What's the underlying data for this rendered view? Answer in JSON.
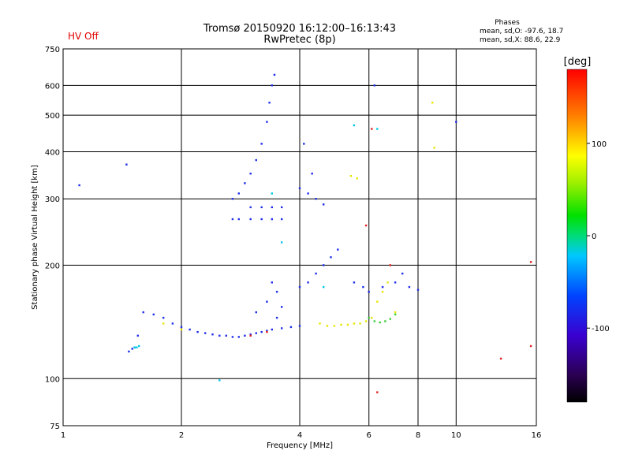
{
  "header": {
    "status": "HV Off",
    "title": "Tromsø 20150920 16:12:00–16:13:43",
    "subtitle": "RwPretec (8p)"
  },
  "phases": {
    "heading": "Phases",
    "o_line": "mean, sd,O: -97.6, 18.7",
    "x_line": "mean, sd,X:  88.6, 22.9"
  },
  "colorbar": {
    "label": "[deg]",
    "ticks": [
      "100",
      "0",
      "-100"
    ],
    "tick_values": [
      100,
      0,
      -100
    ],
    "range": [
      -180,
      180
    ]
  },
  "chart_data": {
    "type": "scatter",
    "xlabel": "Frequency [MHz]",
    "ylabel": "Stationary phase Virtual Height [km]",
    "x_scale": "log",
    "y_scale": "log",
    "xlim": [
      1,
      16
    ],
    "ylim": [
      75,
      750
    ],
    "x_ticks": [
      1,
      2,
      4,
      6,
      8,
      10,
      16
    ],
    "y_ticks": [
      75,
      100,
      200,
      300,
      400,
      500,
      600,
      750
    ],
    "grid": true,
    "color_by": "phase (deg)",
    "series": [
      {
        "color_group": "blue",
        "points": [
          [
            1.1,
            326
          ],
          [
            1.45,
            370
          ],
          [
            1.47,
            118
          ],
          [
            1.5,
            120
          ],
          [
            1.52,
            121
          ],
          [
            1.55,
            130
          ],
          [
            1.6,
            150
          ],
          [
            1.7,
            148
          ],
          [
            1.8,
            145
          ],
          [
            1.9,
            140
          ],
          [
            2.0,
            137
          ],
          [
            2.1,
            135
          ],
          [
            2.2,
            133
          ],
          [
            2.3,
            132
          ],
          [
            2.4,
            131
          ],
          [
            2.5,
            130
          ],
          [
            2.6,
            130
          ],
          [
            2.7,
            129
          ],
          [
            2.8,
            129
          ],
          [
            2.9,
            130
          ],
          [
            3.0,
            131
          ],
          [
            3.1,
            132
          ],
          [
            3.2,
            133
          ],
          [
            3.3,
            134
          ],
          [
            3.4,
            135
          ],
          [
            3.6,
            136
          ],
          [
            3.8,
            137
          ],
          [
            4.0,
            138
          ],
          [
            2.7,
            300
          ],
          [
            2.8,
            310
          ],
          [
            2.9,
            330
          ],
          [
            3.0,
            350
          ],
          [
            3.1,
            380
          ],
          [
            3.2,
            420
          ],
          [
            3.3,
            480
          ],
          [
            3.35,
            540
          ],
          [
            3.4,
            600
          ],
          [
            3.45,
            640
          ],
          [
            2.7,
            265
          ],
          [
            2.8,
            265
          ],
          [
            3.0,
            265
          ],
          [
            3.2,
            265
          ],
          [
            3.4,
            265
          ],
          [
            3.6,
            265
          ],
          [
            3.0,
            285
          ],
          [
            3.2,
            285
          ],
          [
            3.4,
            285
          ],
          [
            3.6,
            285
          ],
          [
            3.1,
            150
          ],
          [
            3.3,
            160
          ],
          [
            3.5,
            170
          ],
          [
            3.6,
            155
          ],
          [
            3.4,
            180
          ],
          [
            3.5,
            145
          ],
          [
            4.0,
            175
          ],
          [
            4.2,
            180
          ],
          [
            4.4,
            190
          ],
          [
            4.6,
            200
          ],
          [
            4.8,
            210
          ],
          [
            5.0,
            220
          ],
          [
            4.0,
            320
          ],
          [
            4.2,
            310
          ],
          [
            4.4,
            300
          ],
          [
            4.6,
            290
          ],
          [
            4.1,
            420
          ],
          [
            4.3,
            350
          ],
          [
            5.5,
            180
          ],
          [
            5.8,
            175
          ],
          [
            6.0,
            170
          ],
          [
            6.5,
            175
          ],
          [
            7.0,
            180
          ],
          [
            7.3,
            190
          ],
          [
            7.6,
            175
          ],
          [
            8.0,
            172
          ],
          [
            6.2,
            600
          ],
          [
            10.0,
            480
          ]
        ]
      },
      {
        "color_group": "cyan",
        "points": [
          [
            1.52,
            121
          ],
          [
            1.54,
            121
          ],
          [
            1.56,
            122
          ],
          [
            2.5,
            99
          ],
          [
            3.4,
            310
          ],
          [
            3.6,
            230
          ],
          [
            4.6,
            175
          ],
          [
            5.5,
            470
          ],
          [
            6.3,
            460
          ]
        ]
      },
      {
        "color_group": "yellow",
        "points": [
          [
            1.8,
            140
          ],
          [
            2.0,
            135
          ],
          [
            4.5,
            140
          ],
          [
            4.7,
            138
          ],
          [
            4.9,
            138
          ],
          [
            5.1,
            139
          ],
          [
            5.3,
            139
          ],
          [
            5.5,
            140
          ],
          [
            5.7,
            140
          ],
          [
            5.9,
            142
          ],
          [
            6.1,
            145
          ],
          [
            6.3,
            160
          ],
          [
            6.5,
            170
          ],
          [
            6.7,
            180
          ],
          [
            7.0,
            150
          ],
          [
            5.4,
            345
          ],
          [
            5.6,
            340
          ],
          [
            8.8,
            410
          ],
          [
            8.7,
            540
          ]
        ]
      },
      {
        "color_group": "green",
        "points": [
          [
            6.0,
            145
          ],
          [
            6.2,
            142
          ],
          [
            6.4,
            141
          ],
          [
            6.6,
            142
          ],
          [
            6.8,
            144
          ],
          [
            7.0,
            148
          ]
        ]
      },
      {
        "color_group": "red",
        "points": [
          [
            3.0,
            130
          ],
          [
            3.3,
            133
          ],
          [
            6.1,
            460
          ],
          [
            15.5,
            204
          ],
          [
            15.5,
            122
          ],
          [
            13.0,
            113
          ],
          [
            6.3,
            92
          ],
          [
            6.8,
            200
          ],
          [
            5.9,
            255
          ]
        ]
      }
    ]
  }
}
